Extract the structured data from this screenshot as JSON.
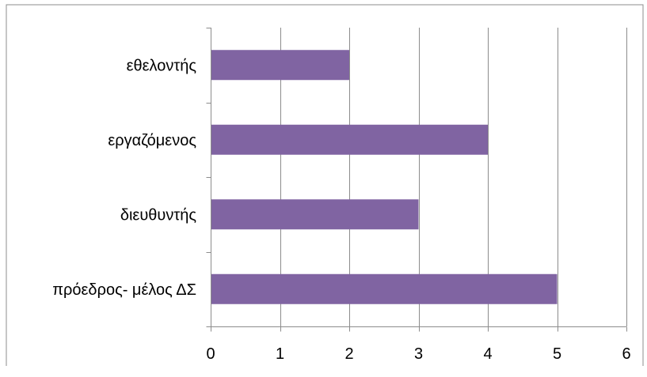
{
  "chart_data": {
    "type": "bar",
    "orientation": "horizontal",
    "categories": [
      "εθελοντής",
      "εργαζόμενος",
      "διευθυντής",
      "πρόεδρος- μέλος ΔΣ"
    ],
    "values": [
      2,
      4,
      3,
      5
    ],
    "x_ticks": [
      "0",
      "1",
      "2",
      "3",
      "4",
      "5",
      "6"
    ],
    "xlim": [
      0,
      6
    ],
    "grid": "vertical",
    "legend": "none",
    "title": "",
    "xlabel": "",
    "ylabel": ""
  },
  "colors": {
    "bar": "#8064a2",
    "grid": "#8c8c8c",
    "axis": "#8c8c8c",
    "frame": "#8c8c8c"
  }
}
